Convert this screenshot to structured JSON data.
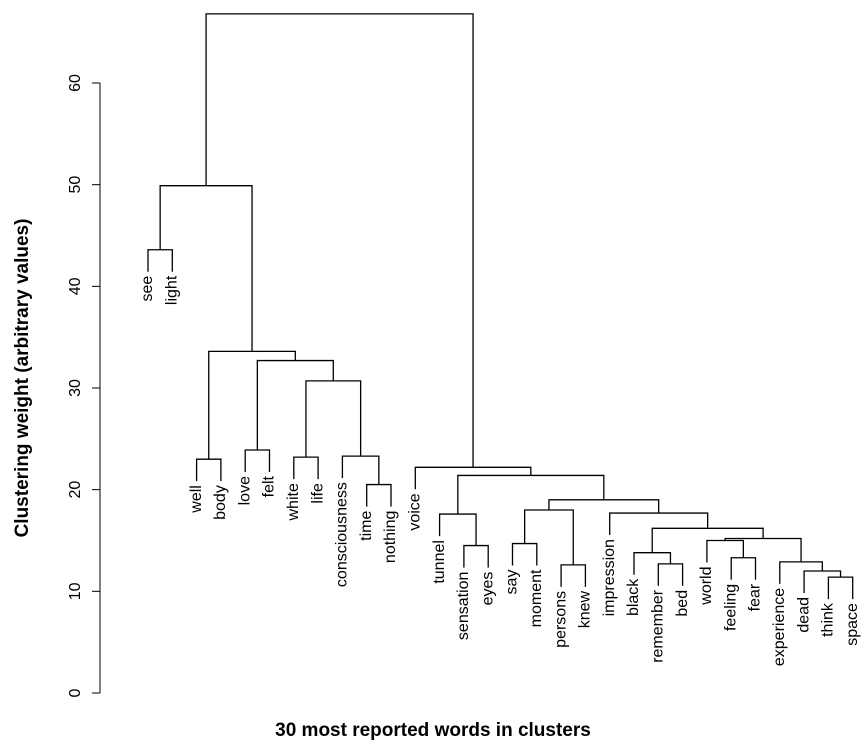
{
  "chart_data": {
    "type": "dendrogram",
    "ylabel": "Clustering weight (arbitrary values)",
    "xlabel": "30 most reported words in clusters",
    "ylim": [
      0,
      60
    ],
    "yticks": [
      0,
      10,
      20,
      30,
      40,
      50,
      60
    ],
    "color": "#000000",
    "tree": {
      "height": 66.8,
      "children": [
        {
          "height": 49.9,
          "children": [
            {
              "height": 43.6,
              "children": [
                {
                  "label": "see"
                },
                {
                  "label": "light"
                }
              ]
            },
            {
              "height": 33.6,
              "children": [
                {
                  "height": 23.0,
                  "children": [
                    {
                      "label": "well"
                    },
                    {
                      "label": "body"
                    }
                  ]
                },
                {
                  "height": 32.7,
                  "children": [
                    {
                      "height": 23.9,
                      "children": [
                        {
                          "label": "love"
                        },
                        {
                          "label": "felt"
                        }
                      ]
                    },
                    {
                      "height": 30.7,
                      "children": [
                        {
                          "height": 23.2,
                          "children": [
                            {
                              "label": "white"
                            },
                            {
                              "label": "life"
                            }
                          ]
                        },
                        {
                          "height": 23.3,
                          "children": [
                            {
                              "label": "consciousness"
                            },
                            {
                              "height": 20.5,
                              "children": [
                                {
                                  "label": "time"
                                },
                                {
                                  "label": "nothing"
                                }
                              ]
                            }
                          ]
                        }
                      ]
                    }
                  ]
                }
              ]
            }
          ]
        },
        {
          "height": 22.2,
          "children": [
            {
              "label": "voice"
            },
            {
              "height": 21.4,
              "children": [
                {
                  "height": 17.6,
                  "children": [
                    {
                      "label": "tunnel"
                    },
                    {
                      "height": 14.5,
                      "children": [
                        {
                          "label": "sensation"
                        },
                        {
                          "label": "eyes"
                        }
                      ]
                    }
                  ]
                },
                {
                  "height": 19.0,
                  "children": [
                    {
                      "height": 18.0,
                      "children": [
                        {
                          "height": 14.7,
                          "children": [
                            {
                              "label": "say"
                            },
                            {
                              "label": "moment"
                            }
                          ]
                        },
                        {
                          "height": 12.6,
                          "children": [
                            {
                              "label": "persons"
                            },
                            {
                              "label": "knew"
                            }
                          ]
                        }
                      ]
                    },
                    {
                      "height": 17.7,
                      "children": [
                        {
                          "label": "impression"
                        },
                        {
                          "height": 16.2,
                          "children": [
                            {
                              "height": 13.8,
                              "children": [
                                {
                                  "label": "black"
                                },
                                {
                                  "height": 12.7,
                                  "children": [
                                    {
                                      "label": "remember"
                                    },
                                    {
                                      "label": "bed"
                                    }
                                  ]
                                }
                              ]
                            },
                            {
                              "height": 15.2,
                              "children": [
                                {
                                  "height": 15.0,
                                  "children": [
                                    {
                                      "label": "world"
                                    },
                                    {
                                      "height": 13.3,
                                      "children": [
                                        {
                                          "label": "feeling"
                                        },
                                        {
                                          "label": "fear"
                                        }
                                      ]
                                    }
                                  ]
                                },
                                {
                                  "height": 12.9,
                                  "children": [
                                    {
                                      "label": "experience"
                                    },
                                    {
                                      "height": 12.0,
                                      "children": [
                                        {
                                          "label": "dead"
                                        },
                                        {
                                          "height": 11.4,
                                          "children": [
                                            {
                                              "label": "think"
                                            },
                                            {
                                              "label": "space"
                                            }
                                          ]
                                        }
                                      ]
                                    }
                                  ]
                                }
                              ]
                            }
                          ]
                        }
                      ]
                    }
                  ]
                }
              ]
            }
          ]
        }
      ]
    }
  }
}
